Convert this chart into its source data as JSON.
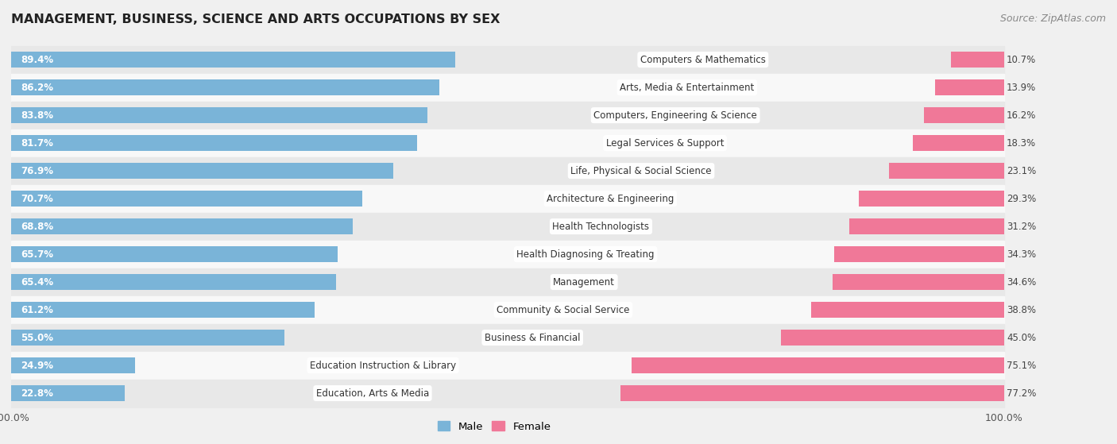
{
  "title": "MANAGEMENT, BUSINESS, SCIENCE AND ARTS OCCUPATIONS BY SEX",
  "source": "Source: ZipAtlas.com",
  "categories": [
    "Computers & Mathematics",
    "Arts, Media & Entertainment",
    "Computers, Engineering & Science",
    "Legal Services & Support",
    "Life, Physical & Social Science",
    "Architecture & Engineering",
    "Health Technologists",
    "Health Diagnosing & Treating",
    "Management",
    "Community & Social Service",
    "Business & Financial",
    "Education Instruction & Library",
    "Education, Arts & Media"
  ],
  "male_pct": [
    89.4,
    86.2,
    83.8,
    81.7,
    76.9,
    70.7,
    68.8,
    65.7,
    65.4,
    61.2,
    55.0,
    24.9,
    22.8
  ],
  "female_pct": [
    10.7,
    13.9,
    16.2,
    18.3,
    23.1,
    29.3,
    31.2,
    34.3,
    34.6,
    38.8,
    45.0,
    75.1,
    77.2
  ],
  "male_color": "#7ab4d8",
  "female_color": "#f07898",
  "bg_color": "#f0f0f0",
  "row_colors": [
    "#e8e8e8",
    "#f8f8f8"
  ],
  "bar_height": 0.58,
  "label_fontsize": 8.5,
  "title_fontsize": 11.5,
  "cat_fontsize": 8.5
}
